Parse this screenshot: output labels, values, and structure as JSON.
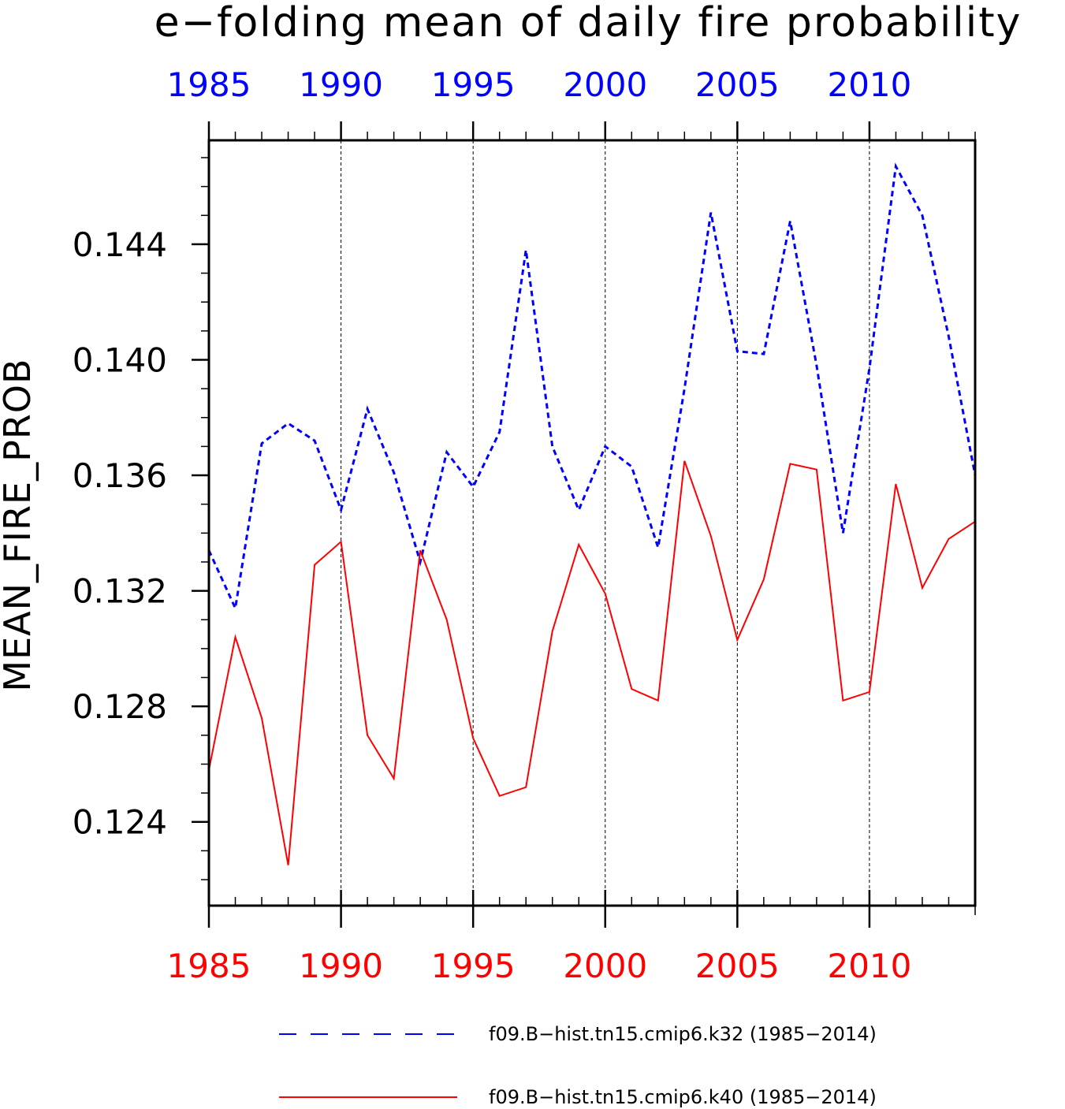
{
  "chart_data": {
    "type": "line",
    "title": "e−folding mean of daily fire probability",
    "ylabel": "MEAN_FIRE_PROB",
    "xlabel": "",
    "xlim": [
      1985,
      2014
    ],
    "ylim": [
      0.1211,
      0.1476
    ],
    "xticks": [
      1985,
      1990,
      1995,
      2000,
      2005,
      2010
    ],
    "xtick_labels": [
      "1985",
      "1990",
      "1995",
      "2000",
      "2005",
      "2010"
    ],
    "yticks": [
      0.124,
      0.128,
      0.132,
      0.136,
      0.14,
      0.144
    ],
    "ytick_labels": [
      "0.124",
      "0.128",
      "0.132",
      "0.136",
      "0.140",
      "0.144"
    ],
    "grid": "vertical dashed at major x ticks",
    "legend_position": "bottom",
    "x": [
      1985,
      1986,
      1987,
      1988,
      1989,
      1990,
      1991,
      1992,
      1993,
      1994,
      1995,
      1996,
      1997,
      1998,
      1999,
      2000,
      2001,
      2002,
      2003,
      2004,
      2005,
      2006,
      2007,
      2008,
      2009,
      2010,
      2011,
      2012,
      2013,
      2014
    ],
    "series": [
      {
        "name": "f09.B−hist.tn15.cmip6.k32 (1985−2014)",
        "color": "#0000ff",
        "style": "dashed",
        "values": [
          0.1334,
          0.1314,
          0.1371,
          0.1378,
          0.1372,
          0.1348,
          0.1383,
          0.1361,
          0.133,
          0.1368,
          0.1356,
          0.1375,
          0.1438,
          0.137,
          0.1348,
          0.137,
          0.1363,
          0.1335,
          0.139,
          0.1451,
          0.1403,
          0.1402,
          0.1448,
          0.1398,
          0.134,
          0.1397,
          0.1467,
          0.145,
          0.1408,
          0.136
        ]
      },
      {
        "name": "f09.B−hist.tn15.cmip6.k40 (1985−2014)",
        "color": "#ff0000",
        "style": "solid",
        "values": [
          0.1258,
          0.1304,
          0.1276,
          0.1225,
          0.1329,
          0.1337,
          0.127,
          0.1255,
          0.1334,
          0.131,
          0.1269,
          0.1249,
          0.1252,
          0.1306,
          0.1336,
          0.1319,
          0.1286,
          0.1282,
          0.1365,
          0.1339,
          0.1303,
          0.1324,
          0.1364,
          0.1362,
          0.1282,
          0.1285,
          0.1357,
          0.1321,
          0.1338,
          0.1344
        ]
      }
    ]
  }
}
